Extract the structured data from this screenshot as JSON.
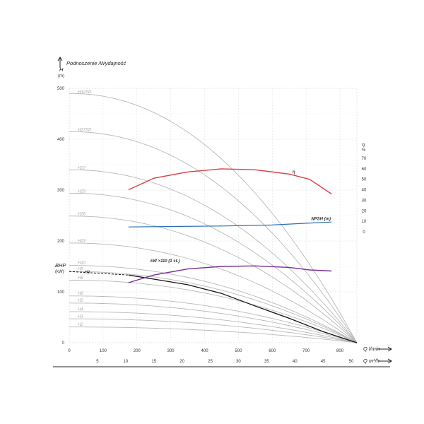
{
  "chart_data": {
    "type": "line",
    "title": "Podnoszenie /Wydajność",
    "y_left": {
      "label_top": "H",
      "label_unit": "(m)",
      "lim": [
        0,
        500
      ],
      "ticks": [
        0,
        100,
        200,
        300,
        400,
        500
      ]
    },
    "y_left_bhp": {
      "label_top": "BHP",
      "label_unit": "(kW)"
    },
    "y_right": {
      "label_top": "η",
      "label_unit": "%",
      "lim": [
        0,
        70
      ],
      "ticks": [
        0,
        10,
        20,
        30,
        40,
        50,
        60,
        70
      ]
    },
    "x_primary": {
      "label": "Q l/min",
      "lim": [
        0,
        850
      ],
      "ticks": [
        0,
        100,
        200,
        300,
        400,
        500,
        600,
        700,
        800
      ]
    },
    "x_secondary": {
      "label": "Q m³/h",
      "ticks": [
        5,
        10,
        15,
        20,
        25,
        30,
        35,
        40,
        45,
        50
      ]
    },
    "grid": true,
    "head_curves": [
      {
        "name": "H32SD",
        "shutoff": 490,
        "knee": 0.68,
        "exp": 2.2
      },
      {
        "name": "H27SD",
        "shutoff": 415,
        "knee": 0.7,
        "exp": 2.2
      },
      {
        "name": "H22",
        "shutoff": 340,
        "knee": 0.72,
        "exp": 2.2
      },
      {
        "name": "H19",
        "shutoff": 294,
        "knee": 0.74,
        "exp": 2.2
      },
      {
        "name": "H16",
        "shutoff": 249,
        "knee": 0.76,
        "exp": 2.2
      },
      {
        "name": "H13",
        "shutoff": 196,
        "knee": 0.78,
        "exp": 2.2
      },
      {
        "name": "H10",
        "shutoff": 152,
        "knee": 0.8,
        "exp": 2.2
      },
      {
        "name": "H9",
        "shutoff": 140,
        "knee": 0.82,
        "exp": 2.2
      },
      {
        "name": "H8",
        "shutoff": 123,
        "knee": 0.84,
        "exp": 2.2
      },
      {
        "name": "H6",
        "shutoff": 92,
        "knee": 0.86,
        "exp": 2.2
      },
      {
        "name": "H5",
        "shutoff": 78,
        "knee": 0.88,
        "exp": 2.2
      },
      {
        "name": "H4",
        "shutoff": 61,
        "knee": 0.9,
        "exp": 2.2
      },
      {
        "name": "H3",
        "shutoff": 47,
        "knee": 0.92,
        "exp": 2.2
      },
      {
        "name": "H2",
        "shutoff": 31,
        "knee": 0.94,
        "exp": 2.2
      }
    ],
    "highlight": {
      "name": "H9",
      "points": [
        [
          0,
          140
        ],
        [
          175,
          133
        ],
        [
          250,
          125
        ],
        [
          350,
          114
        ],
        [
          450,
          97
        ],
        [
          550,
          72
        ],
        [
          650,
          48
        ],
        [
          750,
          22
        ],
        [
          850,
          0
        ]
      ],
      "dashed_until_x": 175,
      "color": "#111111"
    },
    "efficiency": {
      "name": "η",
      "points": [
        [
          175,
          40
        ],
        [
          250,
          51
        ],
        [
          350,
          57
        ],
        [
          450,
          60
        ],
        [
          550,
          59
        ],
        [
          650,
          55
        ],
        [
          710,
          50
        ],
        [
          775,
          36
        ]
      ],
      "color": "#d94040"
    },
    "npsh": {
      "name": "NPSH (m)",
      "points": [
        [
          175,
          2
        ],
        [
          300,
          2.5
        ],
        [
          450,
          3
        ],
        [
          600,
          4
        ],
        [
          700,
          5.8
        ],
        [
          775,
          7
        ]
      ],
      "color": "#2a6fb5"
    },
    "power": {
      "name": "kW ×110 (1 st.)",
      "points": [
        [
          175,
          118
        ],
        [
          250,
          133
        ],
        [
          350,
          145
        ],
        [
          450,
          150
        ],
        [
          550,
          151
        ],
        [
          650,
          148
        ],
        [
          710,
          143
        ],
        [
          775,
          141
        ]
      ],
      "color": "#7a2f9a"
    }
  }
}
